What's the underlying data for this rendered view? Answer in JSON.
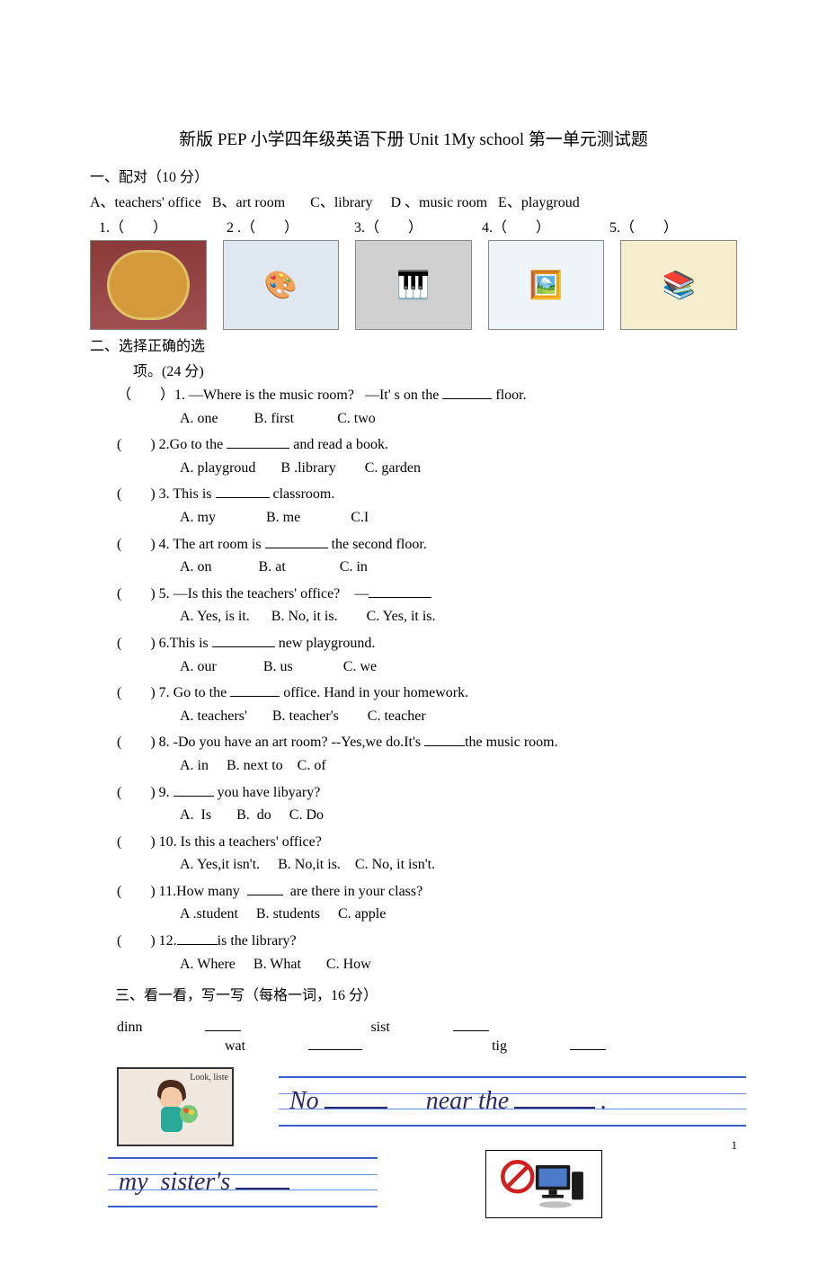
{
  "title": "新版 PEP 小学四年级英语下册 Unit 1My school 第一单元测试题",
  "section1": {
    "heading": "一、配对（10 分）",
    "options_line": "A、teachers' office   B、art room       C、library     D 、music room   E、playgroud",
    "nums": [
      "1.（　　）",
      "2 .（　　）",
      "3.（　　）",
      "4.（　　）",
      "5.（　　）"
    ]
  },
  "section2": {
    "heading_a": "二、选择正确的选",
    "heading_b": "项。(24 分)",
    "questions": [
      {
        "stem_pre": "（　　）1. —Where is the music room?   —It' s on the ",
        "stem_post": " floor.",
        "choices": "A. one          B. first            C. two"
      },
      {
        "stem_pre": "(　　) 2.Go to the ",
        "stem_post": " and read a book.",
        "choices": "A. playgroud       B .library        C. garden"
      },
      {
        "stem_pre": "(　　) 3. This is ",
        "stem_post": " classroom.",
        "choices": "A. my              B. me              C.I"
      },
      {
        "stem_pre": "(　　) 4. The art room is ",
        "stem_post": " the second floor.",
        "choices": "A. on             B. at               C. in"
      },
      {
        "stem_pre": "(　　) 5. —Is this the teachers' office?    —",
        "stem_post": "",
        "choices": "A. Yes, is it.      B. No, it is.        C. Yes, it is."
      },
      {
        "stem_pre": "(　　) 6.This is ",
        "stem_post": " new playground.",
        "choices": "A. our             B. us              C. we"
      },
      {
        "stem_pre": "(　　) 7. Go to the ",
        "stem_post": " office. Hand in your homework.",
        "choices": "A. teachers'       B. teacher's        C. teacher"
      },
      {
        "stem_pre": "(　　) 8. -Do you have an art room? --Yes,we do.It's ",
        "stem_post": "the music room.",
        "choices": "A. in     B. next to    C. of"
      },
      {
        "stem_pre": "(　　) 9. ",
        "stem_post": " you have libyary?",
        "choices": "A.  Is       B.  do     C. Do"
      },
      {
        "stem_pre": "(　　) 10. Is this a teachers' office?",
        "stem_post": null,
        "choices": "A. Yes,it isn't.     B. No,it is.    C. No, it isn't."
      },
      {
        "stem_pre": "(　　) 11.How many  ",
        "stem_post": "  are there in your class?",
        "choices": "A .student     B. students     C. apple"
      },
      {
        "stem_pre": "(　　) 12.",
        "stem_post": "is the library?",
        "choices": "A. Where     B. What       C. How"
      }
    ]
  },
  "section3": {
    "heading": "三、看一看，写一写（每格一词，16 分）",
    "words": [
      "dinn",
      "sist",
      "wat",
      "tig"
    ],
    "look_label": "Look, liste",
    "cursive1_a": "No",
    "cursive1_b": "near the",
    "cursive2": "my  sister's"
  },
  "page_number": "1"
}
